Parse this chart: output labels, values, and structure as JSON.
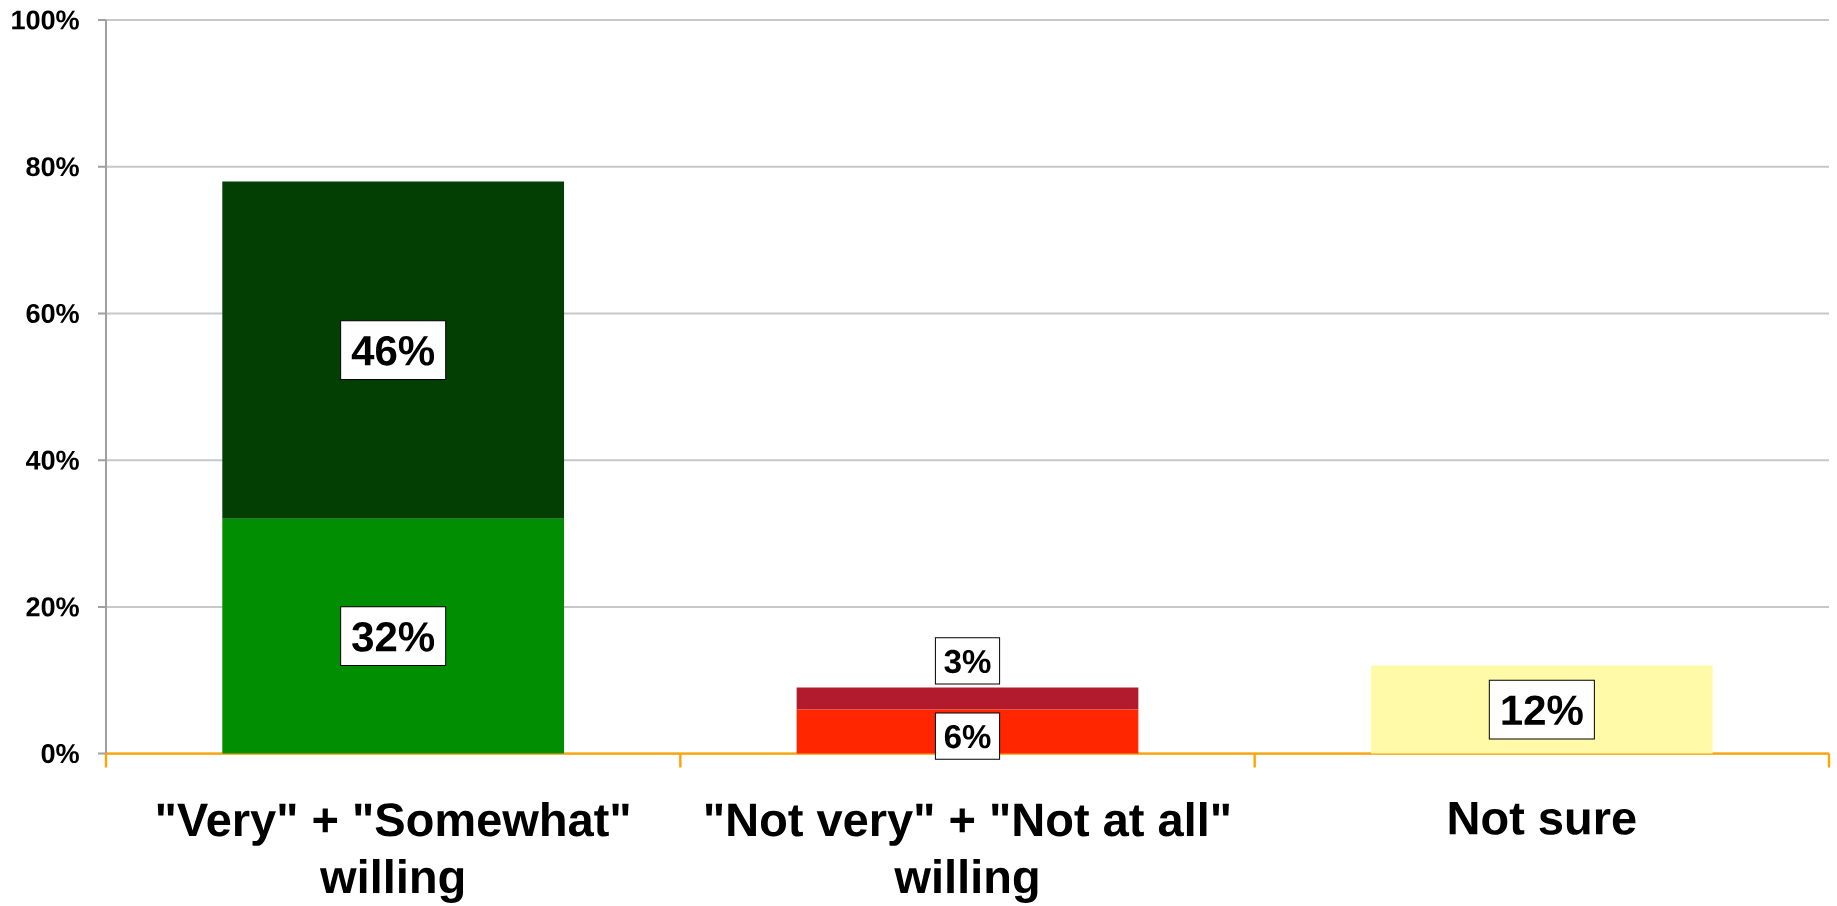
{
  "chart_data": {
    "type": "bar",
    "stacked": true,
    "categories": [
      "\"Very\" + \"Somewhat\" willing",
      "\"Not very\" + \"Not at all\" willing",
      "Not sure"
    ],
    "series": [
      {
        "colors": [
          "#028e02",
          "#ff2600",
          "#fffaa8"
        ],
        "values": [
          32,
          6,
          12
        ],
        "value_labels": [
          "32%",
          "6%",
          "12%"
        ]
      },
      {
        "colors": [
          "#033f02",
          "#b21b2e",
          null
        ],
        "values": [
          46,
          3,
          null
        ],
        "value_labels": [
          "46%",
          "3%",
          null
        ]
      }
    ],
    "ylim": [
      0,
      100
    ],
    "yticks": [
      {
        "value": 0,
        "label": "0%"
      },
      {
        "value": 20,
        "label": "20%"
      },
      {
        "value": 40,
        "label": "40%"
      },
      {
        "value": 60,
        "label": "60%"
      },
      {
        "value": 80,
        "label": "80%"
      },
      {
        "value": 100,
        "label": "100%"
      }
    ],
    "grid": "y"
  }
}
